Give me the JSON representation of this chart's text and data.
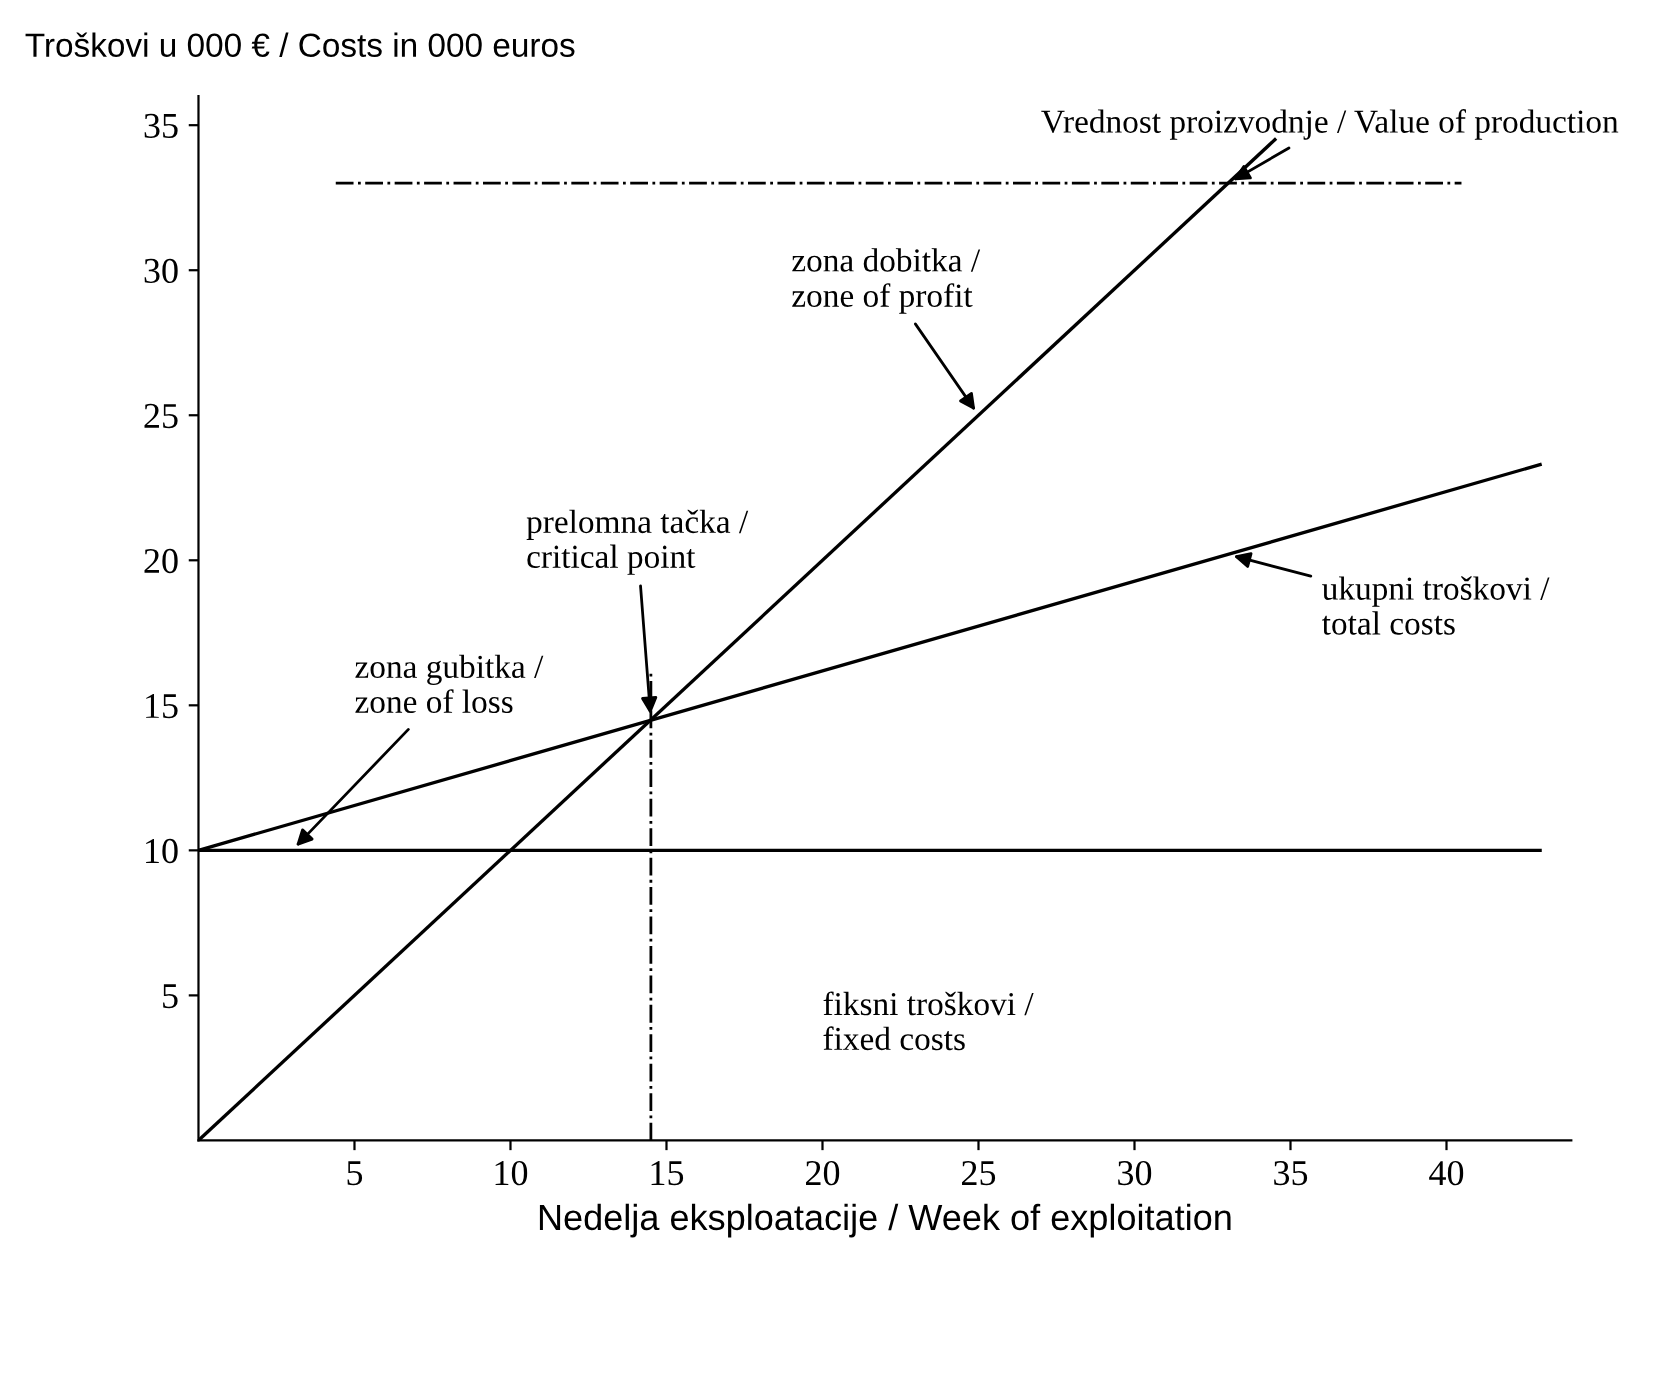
{
  "chart_data": {
    "type": "line",
    "ylabel": "Troškovi u 000 € / Costs in 000 euros",
    "xlabel": "Nedelja eksploatacije / Week of exploitation",
    "series": [
      {
        "color": "#000000",
        "x": [
          0,
          34.5
        ],
        "values": [
          0,
          34.5
        ]
      },
      {
        "color": "#000000",
        "x": [
          0,
          43
        ],
        "values": [
          10,
          23.3
        ]
      },
      {
        "color": "#000000",
        "x": [
          0,
          43
        ],
        "values": [
          10,
          10
        ]
      }
    ],
    "xlim": [
      0,
      44
    ],
    "ylim": [
      0,
      36
    ],
    "xticks": [
      5,
      10,
      15,
      20,
      25,
      30,
      35,
      40
    ],
    "yticks": [
      5,
      10,
      15,
      20,
      25,
      30,
      35
    ],
    "ref_lines": [
      {
        "axis": "y",
        "value": 33,
        "line_style": "dashdot",
        "color": "#000000"
      },
      {
        "axis": "x",
        "value": 14.5,
        "line_style": "dashdot",
        "color": "#000000"
      }
    ],
    "annotations": [
      {
        "text": "Vrednost proizvodnje / Value of production",
        "x": 33,
        "y": 33
      },
      {
        "text": "zona dobitka /\nzone of profit",
        "x": 25,
        "y": 25
      },
      {
        "text": "prelomna tačka /\ncritical point",
        "x": 14.5,
        "y": 14.5
      },
      {
        "text": "ukupni troškovi /\ntotal costs",
        "x": 33,
        "y": 20.2
      },
      {
        "text": "zona gubitka /\nzone of loss",
        "x": 3,
        "y": 10
      },
      "fiksni troškovi /\nfixed costs"
    ],
    "grid": false,
    "legend": false,
    "marker": "none",
    "line_style": "solid"
  }
}
